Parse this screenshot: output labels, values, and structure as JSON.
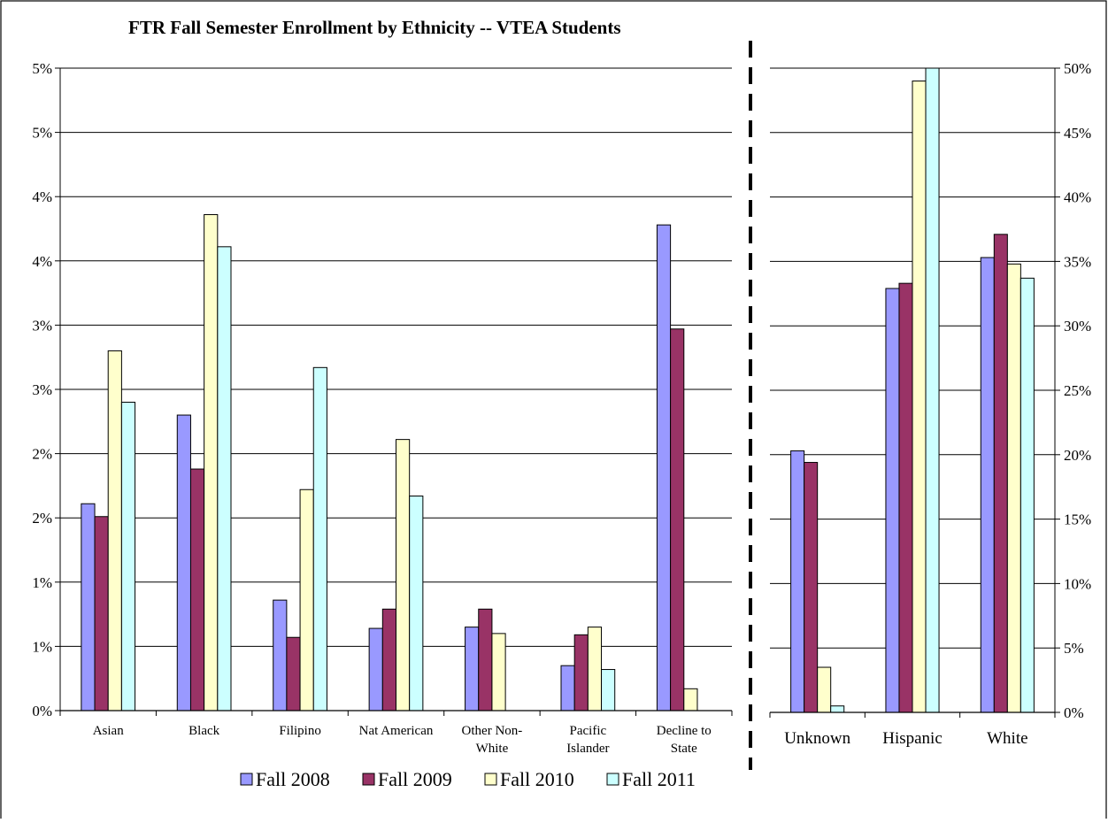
{
  "chart_data": [
    {
      "type": "bar",
      "title": "FTR Fall Semester Enrollment by Ethnicity -- VTEA Students",
      "categories": [
        [
          "Asian"
        ],
        [
          "Black"
        ],
        [
          "Filipino"
        ],
        [
          "Nat American"
        ],
        [
          "Other Non-",
          "White"
        ],
        [
          "Pacific",
          "Islander"
        ],
        [
          "Decline to",
          "State"
        ]
      ],
      "y_tick_labels": [
        "0%",
        "1%",
        "1%",
        "2%",
        "2%",
        "3%",
        "3%",
        "4%",
        "4%",
        "5%",
        "5%"
      ],
      "ylim": [
        0,
        5
      ],
      "y_axis_side": "left",
      "grid": true,
      "series": [
        {
          "name": "Fall 2008",
          "values": [
            1.61,
            2.3,
            0.86,
            0.64,
            0.65,
            0.35,
            3.78
          ]
        },
        {
          "name": "Fall 2009",
          "values": [
            1.51,
            1.88,
            0.57,
            0.79,
            0.79,
            0.59,
            2.97
          ]
        },
        {
          "name": "Fall 2010",
          "values": [
            2.8,
            3.86,
            1.72,
            2.11,
            0.6,
            0.65,
            0.17
          ]
        },
        {
          "name": "Fall 2011",
          "values": [
            2.4,
            3.61,
            2.67,
            1.67,
            0,
            0.32,
            0
          ]
        }
      ]
    },
    {
      "type": "bar",
      "categories": [
        [
          "Unknown"
        ],
        [
          "Hispanic"
        ],
        [
          "White"
        ]
      ],
      "y_tick_labels": [
        "0%",
        "5%",
        "10%",
        "15%",
        "20%",
        "25%",
        "30%",
        "35%",
        "40%",
        "45%",
        "50%"
      ],
      "ylim": [
        0,
        50
      ],
      "y_axis_side": "right",
      "grid": true,
      "series": [
        {
          "name": "Fall 2008",
          "values": [
            20.3,
            32.9,
            35.3
          ]
        },
        {
          "name": "Fall 2009",
          "values": [
            19.4,
            33.3,
            37.1
          ]
        },
        {
          "name": "Fall 2010",
          "values": [
            3.5,
            49.0,
            34.8
          ]
        },
        {
          "name": "Fall 2011",
          "values": [
            0.5,
            50.0,
            33.7
          ]
        }
      ]
    }
  ],
  "legend": {
    "position": "bottom",
    "items": [
      "Fall 2008",
      "Fall 2009",
      "Fall 2010",
      "Fall 2011"
    ]
  },
  "colors": {
    "series": [
      "#9999FF",
      "#993366",
      "#FFFFCC",
      "#CCFFFF"
    ],
    "bar_border": "#000000",
    "gridline": "#000000"
  }
}
